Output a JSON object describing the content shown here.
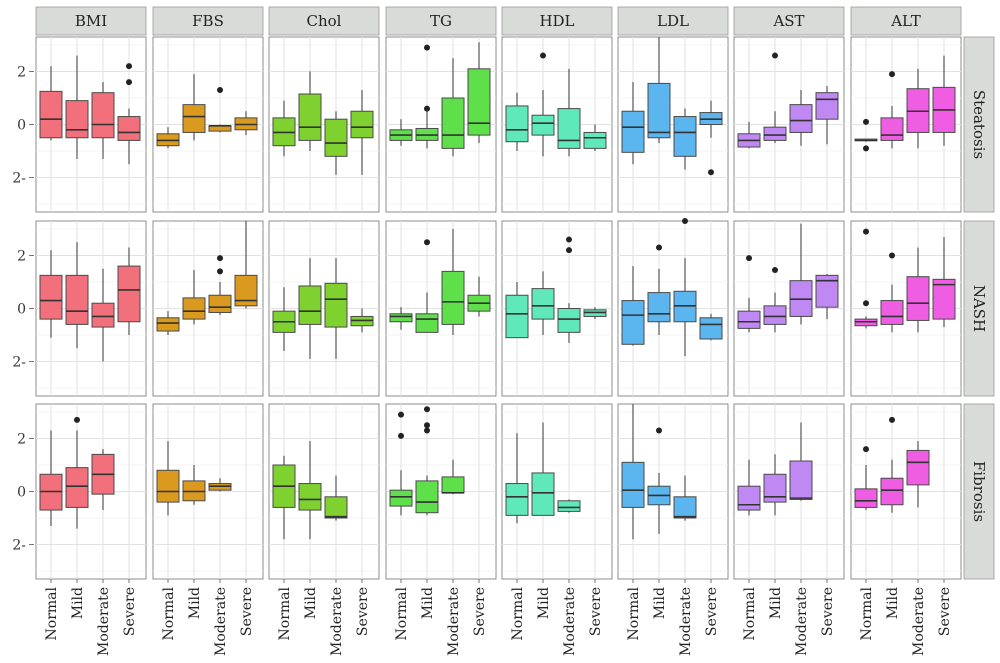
{
  "chart_data": {
    "type": "boxplot",
    "columns": [
      "BMI",
      "FBS",
      "Chol",
      "TG",
      "HDL",
      "LDL",
      "AST",
      "ALT"
    ],
    "rows": [
      "Steatosis",
      "NASH",
      "Fibrosis"
    ],
    "categories": [
      "Normal",
      "Mild",
      "Moderate",
      "Severe"
    ],
    "y_ticks": [
      {
        "value": 2,
        "label": "2"
      },
      {
        "value": 0,
        "label": "0"
      },
      {
        "value": -2,
        "label": "2-"
      }
    ],
    "ylim": [
      -3.3,
      3.3
    ],
    "grid": true,
    "colors": {
      "BMI": "#f2707b",
      "FBS": "#d99a1f",
      "Chol": "#7ed12f",
      "TG": "#5fe04a",
      "HDL": "#5fe8b9",
      "LDL": "#5bb5ee",
      "AST": "#bf88f2",
      "ALT": "#ef5de2"
    },
    "panels": {
      "Steatosis": {
        "BMI": [
          {
            "min": -0.6,
            "q1": -0.5,
            "median": 0.2,
            "q3": 1.25,
            "max": 2.2,
            "outliers": []
          },
          {
            "min": -1.3,
            "q1": -0.5,
            "median": -0.2,
            "q3": 0.9,
            "max": 2.6,
            "outliers": []
          },
          {
            "min": -1.3,
            "q1": -0.5,
            "median": 0.0,
            "q3": 1.2,
            "max": 1.6,
            "outliers": []
          },
          {
            "min": -1.5,
            "q1": -0.6,
            "median": -0.3,
            "q3": 0.3,
            "max": 0.6,
            "outliers": [
              2.2,
              1.6
            ]
          }
        ],
        "FBS": [
          {
            "min": -0.9,
            "q1": -0.8,
            "median": -0.6,
            "q3": -0.35,
            "max": -0.1,
            "outliers": []
          },
          {
            "min": -0.6,
            "q1": -0.3,
            "median": 0.3,
            "q3": 0.75,
            "max": 1.9,
            "outliers": []
          },
          {
            "min": -0.3,
            "q1": -0.25,
            "median": -0.05,
            "q3": -0.05,
            "max": 0.0,
            "outliers": [
              1.3
            ]
          },
          {
            "min": -0.4,
            "q1": -0.2,
            "median": 0.0,
            "q3": 0.25,
            "max": 0.5,
            "outliers": []
          }
        ],
        "Chol": [
          {
            "min": -1.2,
            "q1": -0.8,
            "median": -0.3,
            "q3": 0.25,
            "max": 0.9,
            "outliers": []
          },
          {
            "min": -1.0,
            "q1": -0.6,
            "median": -0.1,
            "q3": 1.15,
            "max": 2.0,
            "outliers": []
          },
          {
            "min": -1.9,
            "q1": -1.2,
            "median": -0.7,
            "q3": 0.2,
            "max": 0.5,
            "outliers": []
          },
          {
            "min": -1.9,
            "q1": -0.5,
            "median": -0.1,
            "q3": 0.5,
            "max": 1.3,
            "outliers": []
          }
        ],
        "TG": [
          {
            "min": -0.8,
            "q1": -0.6,
            "median": -0.4,
            "q3": -0.2,
            "max": 0.2,
            "outliers": []
          },
          {
            "min": -0.9,
            "q1": -0.6,
            "median": -0.4,
            "q3": -0.15,
            "max": 0.5,
            "outliers": [
              2.9,
              0.6
            ]
          },
          {
            "min": -1.2,
            "q1": -0.9,
            "median": -0.4,
            "q3": 1.0,
            "max": 2.5,
            "outliers": []
          },
          {
            "min": -0.7,
            "q1": -0.4,
            "median": 0.05,
            "q3": 2.1,
            "max": 3.1,
            "outliers": []
          }
        ],
        "HDL": [
          {
            "min": -1.0,
            "q1": -0.65,
            "median": -0.2,
            "q3": 0.7,
            "max": 1.2,
            "outliers": []
          },
          {
            "min": -1.2,
            "q1": -0.4,
            "median": 0.05,
            "q3": 0.35,
            "max": 1.3,
            "outliers": [
              2.6
            ]
          },
          {
            "min": -1.2,
            "q1": -0.9,
            "median": -0.6,
            "q3": 0.6,
            "max": 2.1,
            "outliers": []
          },
          {
            "min": -1.0,
            "q1": -0.9,
            "median": -0.5,
            "q3": -0.3,
            "max": 0.0,
            "outliers": []
          }
        ],
        "LDL": [
          {
            "min": -1.5,
            "q1": -1.05,
            "median": -0.1,
            "q3": 0.5,
            "max": 1.6,
            "outliers": []
          },
          {
            "min": -0.7,
            "q1": -0.5,
            "median": -0.3,
            "q3": 1.55,
            "max": 3.3,
            "outliers": []
          },
          {
            "min": -1.7,
            "q1": -1.2,
            "median": -0.3,
            "q3": 0.3,
            "max": 0.6,
            "outliers": []
          },
          {
            "min": -0.5,
            "q1": 0.0,
            "median": 0.2,
            "q3": 0.45,
            "max": 0.9,
            "outliers": [
              -1.8
            ]
          }
        ],
        "AST": [
          {
            "min": -0.9,
            "q1": -0.85,
            "median": -0.6,
            "q3": -0.35,
            "max": 0.1,
            "outliers": []
          },
          {
            "min": -0.7,
            "q1": -0.6,
            "median": -0.4,
            "q3": -0.1,
            "max": 0.5,
            "outliers": [
              2.6
            ]
          },
          {
            "min": -0.8,
            "q1": -0.3,
            "median": 0.15,
            "q3": 0.75,
            "max": 1.3,
            "outliers": []
          },
          {
            "min": -0.75,
            "q1": 0.2,
            "median": 0.95,
            "q3": 1.2,
            "max": 1.45,
            "outliers": []
          }
        ],
        "ALT": [
          {
            "min": -0.65,
            "q1": -0.6,
            "median": -0.6,
            "q3": -0.55,
            "max": -0.55,
            "outliers": [
              0.1,
              -0.9
            ]
          },
          {
            "min": -0.9,
            "q1": -0.6,
            "median": -0.4,
            "q3": 0.25,
            "max": 0.7,
            "outliers": [
              1.9
            ]
          },
          {
            "min": -0.9,
            "q1": -0.3,
            "median": 0.5,
            "q3": 1.35,
            "max": 2.1,
            "outliers": []
          },
          {
            "min": -0.8,
            "q1": -0.3,
            "median": 0.55,
            "q3": 1.4,
            "max": 2.6,
            "outliers": []
          }
        ]
      },
      "NASH": {
        "BMI": [
          {
            "min": -1.1,
            "q1": -0.4,
            "median": 0.3,
            "q3": 1.25,
            "max": 2.2,
            "outliers": []
          },
          {
            "min": -1.5,
            "q1": -0.6,
            "median": -0.1,
            "q3": 1.25,
            "max": 2.5,
            "outliers": []
          },
          {
            "min": -2.0,
            "q1": -0.7,
            "median": -0.3,
            "q3": 0.2,
            "max": 1.5,
            "outliers": []
          },
          {
            "min": -1.0,
            "q1": -0.5,
            "median": 0.7,
            "q3": 1.6,
            "max": 2.3,
            "outliers": []
          }
        ],
        "FBS": [
          {
            "min": -1.0,
            "q1": -0.85,
            "median": -0.55,
            "q3": -0.35,
            "max": -0.1,
            "outliers": []
          },
          {
            "min": -0.6,
            "q1": -0.4,
            "median": -0.1,
            "q3": 0.4,
            "max": 1.45,
            "outliers": []
          },
          {
            "min": -0.25,
            "q1": -0.15,
            "median": 0.05,
            "q3": 0.5,
            "max": 1.0,
            "outliers": [
              1.9,
              1.4
            ]
          },
          {
            "min": 0.0,
            "q1": 0.1,
            "median": 0.3,
            "q3": 1.25,
            "max": 3.3,
            "outliers": []
          }
        ],
        "Chol": [
          {
            "min": -1.6,
            "q1": -0.9,
            "median": -0.5,
            "q3": -0.1,
            "max": 0.8,
            "outliers": []
          },
          {
            "min": -1.9,
            "q1": -0.6,
            "median": -0.1,
            "q3": 0.85,
            "max": 1.9,
            "outliers": []
          },
          {
            "min": -1.9,
            "q1": -0.7,
            "median": 0.35,
            "q3": 0.95,
            "max": 1.9,
            "outliers": []
          },
          {
            "min": -0.9,
            "q1": -0.65,
            "median": -0.45,
            "q3": -0.3,
            "max": 0.0,
            "outliers": []
          }
        ],
        "TG": [
          {
            "min": -0.8,
            "q1": -0.5,
            "median": -0.3,
            "q3": -0.2,
            "max": 0.05,
            "outliers": []
          },
          {
            "min": -0.9,
            "q1": -0.9,
            "median": -0.4,
            "q3": -0.2,
            "max": 0.6,
            "outliers": [
              2.5
            ]
          },
          {
            "min": -1.0,
            "q1": -0.6,
            "median": 0.25,
            "q3": 1.4,
            "max": 3.0,
            "outliers": []
          },
          {
            "min": -0.3,
            "q1": -0.1,
            "median": 0.2,
            "q3": 0.5,
            "max": 1.2,
            "outliers": []
          }
        ],
        "HDL": [
          {
            "min": -1.1,
            "q1": -1.1,
            "median": -0.2,
            "q3": 0.5,
            "max": 1.0,
            "outliers": []
          },
          {
            "min": -1.0,
            "q1": -0.4,
            "median": 0.1,
            "q3": 0.75,
            "max": 1.4,
            "outliers": []
          },
          {
            "min": -1.3,
            "q1": -0.9,
            "median": -0.4,
            "q3": 0.0,
            "max": 0.2,
            "outliers": [
              2.6,
              2.2
            ]
          },
          {
            "min": -0.4,
            "q1": -0.3,
            "median": -0.15,
            "q3": -0.05,
            "max": 0.05,
            "outliers": []
          }
        ],
        "LDL": [
          {
            "min": -1.4,
            "q1": -1.35,
            "median": -0.25,
            "q3": 0.3,
            "max": 1.6,
            "outliers": []
          },
          {
            "min": -1.0,
            "q1": -0.5,
            "median": -0.2,
            "q3": 0.6,
            "max": 1.5,
            "outliers": [
              2.3
            ]
          },
          {
            "min": -1.8,
            "q1": -0.5,
            "median": 0.1,
            "q3": 0.65,
            "max": 1.9,
            "outliers": [
              3.3
            ]
          },
          {
            "min": -1.2,
            "q1": -1.15,
            "median": -0.6,
            "q3": -0.35,
            "max": -0.2,
            "outliers": []
          }
        ],
        "AST": [
          {
            "min": -0.9,
            "q1": -0.75,
            "median": -0.5,
            "q3": -0.1,
            "max": 0.4,
            "outliers": [
              1.9
            ]
          },
          {
            "min": -0.9,
            "q1": -0.6,
            "median": -0.3,
            "q3": 0.1,
            "max": 0.6,
            "outliers": [
              1.45
            ]
          },
          {
            "min": -0.6,
            "q1": -0.3,
            "median": 0.35,
            "q3": 1.05,
            "max": 3.2,
            "outliers": []
          },
          {
            "min": -0.4,
            "q1": 0.05,
            "median": 1.05,
            "q3": 1.25,
            "max": 1.3,
            "outliers": []
          }
        ],
        "ALT": [
          {
            "min": -0.75,
            "q1": -0.65,
            "median": -0.5,
            "q3": -0.4,
            "max": -0.3,
            "outliers": [
              2.9,
              0.2
            ]
          },
          {
            "min": -0.9,
            "q1": -0.6,
            "median": -0.3,
            "q3": 0.3,
            "max": 0.9,
            "outliers": [
              2.0
            ]
          },
          {
            "min": -0.9,
            "q1": -0.45,
            "median": 0.2,
            "q3": 1.2,
            "max": 2.3,
            "outliers": []
          },
          {
            "min": -0.7,
            "q1": -0.4,
            "median": 0.9,
            "q3": 1.1,
            "max": 2.7,
            "outliers": []
          }
        ]
      },
      "Fibrosis": {
        "BMI": [
          {
            "min": -1.3,
            "q1": -0.7,
            "median": 0.0,
            "q3": 0.65,
            "max": 2.3,
            "outliers": []
          },
          {
            "min": -1.4,
            "q1": -0.6,
            "median": 0.2,
            "q3": 0.9,
            "max": 2.3,
            "outliers": [
              2.7
            ]
          },
          {
            "min": -0.7,
            "q1": -0.1,
            "median": 0.65,
            "q3": 1.4,
            "max": 1.6,
            "outliers": []
          }
        ],
        "FBS": [
          {
            "min": -0.9,
            "q1": -0.4,
            "median": 0.0,
            "q3": 0.8,
            "max": 1.9,
            "outliers": []
          },
          {
            "min": -0.5,
            "q1": -0.35,
            "median": 0.0,
            "q3": 0.4,
            "max": 1.0,
            "outliers": []
          },
          {
            "min": 0.0,
            "q1": 0.05,
            "median": 0.2,
            "q3": 0.3,
            "max": 0.5,
            "outliers": []
          }
        ],
        "Chol": [
          {
            "min": -1.8,
            "q1": -0.6,
            "median": 0.2,
            "q3": 1.0,
            "max": 1.35,
            "outliers": []
          },
          {
            "min": -1.8,
            "q1": -0.7,
            "median": -0.3,
            "q3": 0.3,
            "max": 1.9,
            "outliers": []
          },
          {
            "min": -1.1,
            "q1": -1.0,
            "median": -0.95,
            "q3": -0.2,
            "max": 0.6,
            "outliers": []
          }
        ],
        "TG": [
          {
            "min": -0.9,
            "q1": -0.55,
            "median": -0.2,
            "q3": 0.05,
            "max": 0.8,
            "outliers": [
              2.9,
              2.1
            ]
          },
          {
            "min": -0.9,
            "q1": -0.8,
            "median": -0.4,
            "q3": 0.4,
            "max": 0.6,
            "outliers": [
              3.1,
              2.5,
              2.3
            ]
          },
          {
            "min": -0.1,
            "q1": -0.05,
            "median": -0.05,
            "q3": 0.55,
            "max": 1.2,
            "outliers": []
          }
        ],
        "HDL": [
          {
            "min": -1.2,
            "q1": -0.9,
            "median": -0.2,
            "q3": 0.3,
            "max": 2.2,
            "outliers": []
          },
          {
            "min": -0.9,
            "q1": -0.9,
            "median": -0.05,
            "q3": 0.7,
            "max": 2.6,
            "outliers": []
          },
          {
            "min": -0.8,
            "q1": -0.75,
            "median": -0.6,
            "q3": -0.35,
            "max": -0.3,
            "outliers": []
          }
        ],
        "LDL": [
          {
            "min": -1.8,
            "q1": -0.6,
            "median": 0.05,
            "q3": 1.1,
            "max": 3.3,
            "outliers": []
          },
          {
            "min": -1.6,
            "q1": -0.5,
            "median": -0.15,
            "q3": 0.2,
            "max": 0.7,
            "outliers": [
              2.3
            ]
          },
          {
            "min": -1.1,
            "q1": -1.0,
            "median": -0.95,
            "q3": -0.2,
            "max": 0.6,
            "outliers": []
          }
        ],
        "AST": [
          {
            "min": -0.9,
            "q1": -0.7,
            "median": -0.5,
            "q3": 0.2,
            "max": 1.2,
            "outliers": []
          },
          {
            "min": -0.9,
            "q1": -0.4,
            "median": -0.2,
            "q3": 0.65,
            "max": 1.4,
            "outliers": []
          },
          {
            "min": -0.35,
            "q1": -0.3,
            "median": -0.25,
            "q3": 1.15,
            "max": 2.6,
            "outliers": []
          }
        ],
        "ALT": [
          {
            "min": -0.7,
            "q1": -0.6,
            "median": -0.35,
            "q3": 0.1,
            "max": 1.0,
            "outliers": [
              1.6
            ]
          },
          {
            "min": -0.8,
            "q1": -0.5,
            "median": 0.05,
            "q3": 0.5,
            "max": 1.2,
            "outliers": [
              2.7
            ]
          },
          {
            "min": -0.6,
            "q1": 0.25,
            "median": 1.1,
            "q3": 1.55,
            "max": 1.9,
            "outliers": []
          }
        ]
      }
    }
  }
}
